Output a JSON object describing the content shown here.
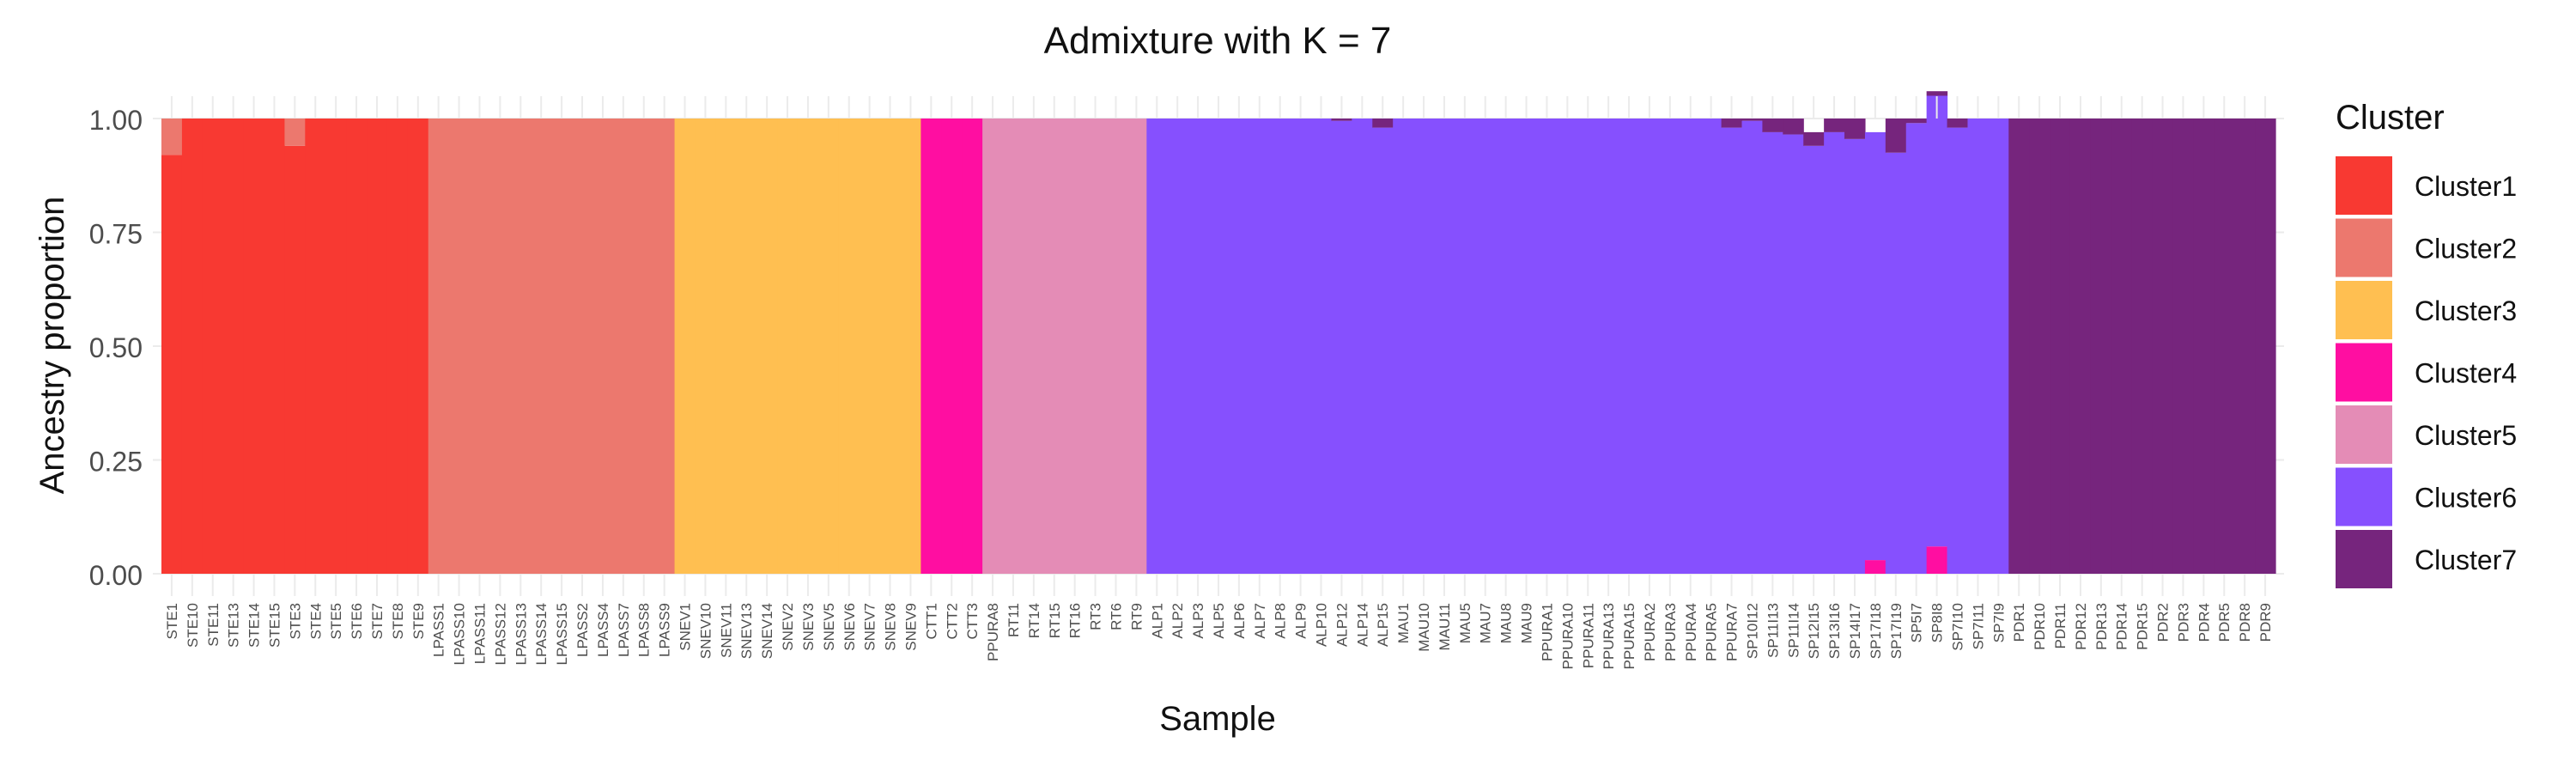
{
  "chart_data": {
    "type": "stacked-bar",
    "title": "Admixture with K = 7",
    "xlabel": "Sample",
    "ylabel": "Ancestry proportion",
    "ylim": [
      0,
      1
    ],
    "yticks": [
      "0.00",
      "0.25",
      "0.50",
      "0.75",
      "1.00"
    ],
    "legend": {
      "title": "Cluster",
      "position": "right",
      "entries": [
        "Cluster1",
        "Cluster2",
        "Cluster3",
        "Cluster4",
        "Cluster5",
        "Cluster6",
        "Cluster7"
      ]
    },
    "colors": [
      "#f83932",
      "#ec786e",
      "#ffbf51",
      "#ff0ea1",
      "#e48cb6",
      "#8650fe",
      "#76257d"
    ],
    "samples": [
      "STE1",
      "STE10",
      "STE11",
      "STE13",
      "STE14",
      "STE15",
      "STE3",
      "STE4",
      "STE5",
      "STE6",
      "STE7",
      "STE8",
      "STE9",
      "LPASS1",
      "LPASS10",
      "LPASS11",
      "LPASS12",
      "LPASS13",
      "LPASS14",
      "LPASS15",
      "LPASS2",
      "LPASS4",
      "LPASS7",
      "LPASS8",
      "LPASS9",
      "SNEV1",
      "SNEV10",
      "SNEV11",
      "SNEV13",
      "SNEV14",
      "SNEV2",
      "SNEV3",
      "SNEV5",
      "SNEV6",
      "SNEV7",
      "SNEV8",
      "SNEV9",
      "CTT1",
      "CTT2",
      "CTT3",
      "PPURA8",
      "RT11",
      "RT14",
      "RT15",
      "RT16",
      "RT3",
      "RT6",
      "RT9",
      "ALP1",
      "ALP2",
      "ALP3",
      "ALP5",
      "ALP6",
      "ALP7",
      "ALP8",
      "ALP9",
      "ALP10",
      "ALP12",
      "ALP14",
      "ALP15",
      "MAU1",
      "MAU10",
      "MAU11",
      "MAU5",
      "MAU7",
      "MAU8",
      "MAU9",
      "PPURA1",
      "PPURA10",
      "PPURA11",
      "PPURA13",
      "PPURA15",
      "PPURA2",
      "PPURA3",
      "PPURA4",
      "PPURA5",
      "PPURA7",
      "SP10I12",
      "SP11I13",
      "SP11I14",
      "SP12I15",
      "SP13I16",
      "SP14I17",
      "SP17I18",
      "SP17I19",
      "SP5I7",
      "SP8I8",
      "SP7I10",
      "SP7I11",
      "SP7I9",
      "PDR1",
      "PDR10",
      "PDR11",
      "PDR12",
      "PDR13",
      "PDR14",
      "PDR15",
      "PDR2",
      "PDR3",
      "PDR4",
      "PDR5",
      "PDR8",
      "PDR9"
    ],
    "series": [
      {
        "name": "Cluster1",
        "values": [
          0.92,
          1,
          1,
          1,
          1,
          1,
          0.94,
          1,
          1,
          1,
          1,
          1,
          1,
          0,
          0,
          0,
          0,
          0,
          0,
          0,
          0,
          0,
          0,
          0,
          0,
          0,
          0,
          0,
          0,
          0,
          0,
          0,
          0,
          0,
          0,
          0,
          0,
          0,
          0,
          0,
          0,
          0,
          0,
          0,
          0,
          0,
          0,
          0,
          0,
          0,
          0,
          0,
          0,
          0,
          0,
          0,
          0,
          0,
          0,
          0,
          0,
          0,
          0,
          0,
          0,
          0,
          0,
          0,
          0,
          0,
          0,
          0,
          0,
          0,
          0,
          0,
          0,
          0,
          0,
          0,
          0,
          0,
          0,
          0,
          0,
          0,
          0,
          0,
          0,
          0,
          0,
          0,
          0,
          0,
          0,
          0,
          0,
          0,
          0,
          0,
          0,
          0,
          0
        ]
      },
      {
        "name": "Cluster2",
        "values": [
          0.08,
          0,
          0,
          0,
          0,
          0,
          0.06,
          0,
          0,
          0,
          0,
          0,
          0,
          1,
          1,
          1,
          1,
          1,
          1,
          1,
          1,
          1,
          1,
          1,
          1,
          0,
          0,
          0,
          0,
          0,
          0,
          0,
          0,
          0,
          0,
          0,
          0,
          0,
          0,
          0,
          0,
          0,
          0,
          0,
          0,
          0,
          0,
          0,
          0,
          0,
          0,
          0,
          0,
          0,
          0,
          0,
          0,
          0,
          0,
          0,
          0,
          0,
          0,
          0,
          0,
          0,
          0,
          0,
          0,
          0,
          0,
          0,
          0,
          0,
          0,
          0,
          0,
          0,
          0,
          0,
          0,
          0,
          0,
          0,
          0,
          0,
          0,
          0,
          0,
          0,
          0,
          0,
          0,
          0,
          0,
          0,
          0,
          0,
          0,
          0,
          0,
          0,
          0
        ]
      },
      {
        "name": "Cluster3",
        "values": [
          0,
          0,
          0,
          0,
          0,
          0,
          0,
          0,
          0,
          0,
          0,
          0,
          0,
          0,
          0,
          0,
          0,
          0,
          0,
          0,
          0,
          0,
          0,
          0,
          0,
          1,
          1,
          1,
          1,
          1,
          1,
          1,
          1,
          1,
          1,
          1,
          1,
          0,
          0,
          0,
          0,
          0,
          0,
          0,
          0,
          0,
          0,
          0,
          0,
          0,
          0,
          0,
          0,
          0,
          0,
          0,
          0,
          0,
          0,
          0,
          0,
          0,
          0,
          0,
          0,
          0,
          0,
          0,
          0,
          0,
          0,
          0,
          0,
          0,
          0,
          0,
          0,
          0,
          0,
          0,
          0,
          0,
          0,
          0,
          0,
          0,
          0,
          0,
          0,
          0,
          0,
          0,
          0,
          0,
          0,
          0,
          0,
          0,
          0,
          0,
          0,
          0,
          0
        ]
      },
      {
        "name": "Cluster4",
        "values": [
          0,
          0,
          0,
          0,
          0,
          0,
          0,
          0,
          0,
          0,
          0,
          0,
          0,
          0,
          0,
          0,
          0,
          0,
          0,
          0,
          0,
          0,
          0,
          0,
          0,
          0,
          0,
          0,
          0,
          0,
          0,
          0,
          0,
          0,
          0,
          0,
          0,
          1,
          1,
          1,
          0,
          0,
          0,
          0,
          0,
          0,
          0,
          0,
          0,
          0,
          0,
          0,
          0,
          0,
          0,
          0,
          0,
          0,
          0,
          0,
          0,
          0,
          0,
          0,
          0,
          0,
          0,
          0,
          0,
          0,
          0,
          0,
          0,
          0,
          0,
          0,
          0,
          0,
          0,
          0,
          0,
          0,
          0,
          0.03,
          0,
          0,
          0.06,
          0,
          0,
          0,
          0,
          0,
          0,
          0,
          0,
          0,
          0,
          0,
          0,
          0,
          0,
          0,
          0,
          0
        ]
      },
      {
        "name": "Cluster5",
        "values": [
          0,
          0,
          0,
          0,
          0,
          0,
          0,
          0,
          0,
          0,
          0,
          0,
          0,
          0,
          0,
          0,
          0,
          0,
          0,
          0,
          0,
          0,
          0,
          0,
          0,
          0,
          0,
          0,
          0,
          0,
          0,
          0,
          0,
          0,
          0,
          0,
          0,
          0,
          0,
          0,
          1,
          1,
          1,
          1,
          1,
          1,
          1,
          1,
          0,
          0,
          0,
          0,
          0,
          0,
          0,
          0,
          0,
          0,
          0,
          0,
          0,
          0,
          0,
          0,
          0,
          0,
          0,
          0,
          0,
          0,
          0,
          0,
          0,
          0,
          0,
          0,
          0,
          0,
          0,
          0,
          0,
          0,
          0,
          0,
          0,
          0,
          0,
          0,
          0,
          0,
          0,
          0,
          0,
          0,
          0,
          0,
          0,
          0,
          0,
          0,
          0,
          0,
          0
        ]
      },
      {
        "name": "Cluster6",
        "values": [
          0,
          0,
          0,
          0,
          0,
          0,
          0,
          0,
          0,
          0,
          0,
          0,
          0,
          0,
          0,
          0,
          0,
          0,
          0,
          0,
          0,
          0,
          0,
          0,
          0,
          0,
          0,
          0,
          0,
          0,
          0,
          0,
          0,
          0,
          0,
          0,
          0,
          0,
          0,
          0,
          0,
          0,
          0,
          0,
          0,
          0,
          0,
          0,
          1,
          1,
          1,
          1,
          1,
          1,
          1,
          1,
          1,
          0.995,
          1,
          0.98,
          1,
          1,
          1,
          1,
          1,
          1,
          1,
          1,
          1,
          1,
          1,
          1,
          1,
          1,
          1,
          1,
          0.98,
          0.995,
          0.97,
          0.965,
          0.94,
          0.97,
          0.955,
          0.94,
          0.925,
          0.99,
          0.99,
          0.98,
          1,
          1,
          0,
          0,
          0,
          0,
          0,
          0,
          0,
          0,
          0,
          0,
          0,
          0,
          0
        ]
      },
      {
        "name": "Cluster7",
        "values": [
          0,
          0,
          0,
          0,
          0,
          0,
          0,
          0,
          0,
          0,
          0,
          0,
          0,
          0,
          0,
          0,
          0,
          0,
          0,
          0,
          0,
          0,
          0,
          0,
          0,
          0,
          0,
          0,
          0,
          0,
          0,
          0,
          0,
          0,
          0,
          0,
          0,
          0,
          0,
          0,
          0,
          0,
          0,
          0,
          0,
          0,
          0,
          0,
          0,
          0,
          0,
          0,
          0,
          0,
          0,
          0,
          0,
          0.005,
          0,
          0.02,
          0,
          0,
          0,
          0,
          0,
          0,
          0,
          0,
          0,
          0,
          0,
          0,
          0,
          0,
          0,
          0,
          0.02,
          0.005,
          0.03,
          0.035,
          0.03,
          0.03,
          0.045,
          0,
          0.075,
          0.01,
          0.01,
          0.02,
          0,
          0,
          1,
          1,
          1,
          1,
          1,
          1,
          1,
          1,
          1,
          1,
          1,
          1,
          1
        ]
      }
    ]
  }
}
